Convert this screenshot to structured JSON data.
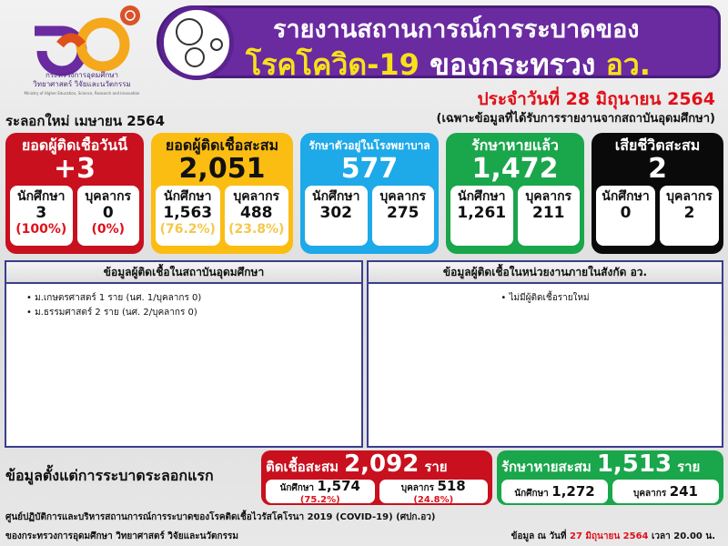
{
  "header": {
    "logo_text_th1": "กระทรวงการอุดมศึกษา",
    "logo_text_th2": "วิทยาศาสตร์ วิจัยและนวัตกรรม",
    "logo_text_en": "Ministry of Higher Education, Science, Research and Innovation",
    "title_line1": "รายงานสถานการณ์การระบาดของ",
    "title_line2_a": "โรคโควิด-19",
    "title_line2_b": "ของกระทรวง",
    "title_line2_c": "อว.",
    "date": "ประจำวันที่ 28 มิถุนายน 2564",
    "note": "(เฉพาะข้อมูลที่ได้รับการรายงานจากสถาบันอุดมศึกษา)",
    "wave": "ระลอกใหม่ เมษายน 2564"
  },
  "cards": [
    {
      "title": "ยอดผู้ติดเชื้อวันนี้",
      "value": "+3",
      "color": "#c8101e",
      "s_label": "นักศึกษา",
      "s_value": "3",
      "s_pct": "(100%)",
      "p_label": "บุคลากร",
      "p_value": "0",
      "p_pct": "(0%)"
    },
    {
      "title": "ยอดผู้ติดเชื้อสะสม",
      "value": "2,051",
      "color": "#fbbd12",
      "s_label": "นักศึกษา",
      "s_value": "1,563",
      "s_pct": "(76.2%)",
      "p_label": "บุคลากร",
      "p_value": "488",
      "p_pct": "(23.8%)"
    },
    {
      "title": "รักษาตัวอยู่ในโรงพยาบาล",
      "value": "577",
      "color": "#1ea9e8",
      "s_label": "นักศึกษา",
      "s_value": "302",
      "p_label": "บุคลากร",
      "p_value": "275"
    },
    {
      "title": "รักษาหายแล้ว",
      "value": "1,472",
      "color": "#1aa64b",
      "s_label": "นักศึกษา",
      "s_value": "1,261",
      "p_label": "บุคลากร",
      "p_value": "211"
    },
    {
      "title": "เสียชีวิตสะสม",
      "value": "2",
      "color": "#0a0a0a",
      "s_label": "นักศึกษา",
      "s_value": "0",
      "p_label": "บุคลากร",
      "p_value": "2"
    }
  ],
  "panels": {
    "left_title": "ข้อมูลผู้ติดเชื้อในสถาบันอุดมศึกษา",
    "left_items": [
      "ม.เกษตรศาสตร์ 1 ราย (นศ. 1/บุคลากร 0)",
      "ม.ธรรมศาสตร์ 2 ราย (นศ. 2/บุคลากร 0)"
    ],
    "right_title": "ข้อมูลผู้ติดเชื้อในหน่วยงานภายในสังกัด อว.",
    "right_items": [
      "ไม่มีผู้ติดเชื้อรายใหม่"
    ]
  },
  "since": {
    "label": "ข้อมูลตั้งแต่การระบาดระลอกแรก",
    "infected": {
      "label": "ติดเชื้อสะสม",
      "value": "2,092",
      "unit": "ราย",
      "s_label": "นักศึกษา",
      "s_value": "1,574",
      "s_pct": "(75.2%)",
      "p_label": "บุคลากร",
      "p_value": "518",
      "p_pct": "(24.8%)",
      "color": "#c8101e"
    },
    "recovered": {
      "label": "รักษาหายสะสม",
      "value": "1,513",
      "unit": "ราย",
      "s_label": "นักศึกษา",
      "s_value": "1,272",
      "p_label": "บุคลากร",
      "p_value": "241",
      "color": "#1aa64b"
    }
  },
  "footer": {
    "line1": "ศูนย์ปฏิบัติการและบริหารสถานการณ์การระบาดของโรคติดเชื้อไวรัสโคโรนา 2019 (COVID-19) (ศปก.อว)",
    "line2": "ของกระทรวงการอุดมศึกษา วิทยาศาสตร์ วิจัยและนวัตกรรม",
    "asof_a": "ข้อมูล ณ วันที่",
    "asof_date": "27 มิถุนายน 2564",
    "asof_b": "เวลา 20.00 น."
  }
}
